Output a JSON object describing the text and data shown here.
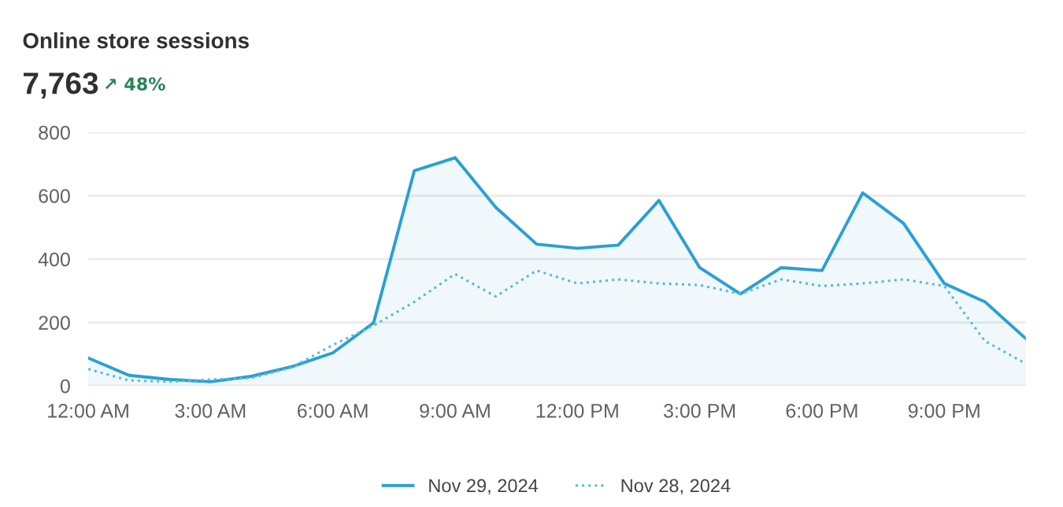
{
  "chart_data": {
    "type": "line",
    "title": "Online store sessions",
    "subtitle": "7,763",
    "annotations": [
      "↗ 48%"
    ],
    "x": [
      0,
      1,
      2,
      3,
      4,
      5,
      6,
      7,
      8,
      9,
      10,
      11,
      12,
      13,
      14,
      15,
      16,
      17,
      18,
      19,
      20,
      21,
      22,
      23
    ],
    "series": [
      {
        "name": "Nov 29, 2024",
        "type": "area",
        "color": "#2a9fd6",
        "line_style": "solid",
        "values": [
          88,
          33,
          20,
          13,
          30,
          61,
          104,
          199,
          679,
          720,
          563,
          447,
          434,
          444,
          585,
          373,
          290,
          373,
          364,
          609,
          513,
          323,
          265,
          149
        ]
      },
      {
        "name": "Nov 28, 2024",
        "color": "#5ab8e0",
        "line_style": "dotted",
        "values": [
          53,
          17,
          13,
          20,
          25,
          58,
          129,
          190,
          265,
          353,
          282,
          364,
          323,
          336,
          323,
          318,
          290,
          336,
          315,
          323,
          336,
          315,
          141,
          70
        ]
      }
    ],
    "xlim": [
      0,
      23
    ],
    "ylim": [
      0,
      800
    ],
    "xticks": [
      {
        "value": 0,
        "label": "12:00 AM"
      },
      {
        "value": 3,
        "label": "3:00 AM"
      },
      {
        "value": 6,
        "label": "6:00 AM"
      },
      {
        "value": 9,
        "label": "9:00 AM"
      },
      {
        "value": 12,
        "label": "12:00 PM"
      },
      {
        "value": 15,
        "label": "3:00 PM"
      },
      {
        "value": 18,
        "label": "6:00 PM"
      },
      {
        "value": 21,
        "label": "9:00 PM"
      }
    ],
    "yticks": [
      0,
      200,
      400,
      600,
      800
    ],
    "grid": "y",
    "legend": "bottom",
    "marker": "none"
  }
}
